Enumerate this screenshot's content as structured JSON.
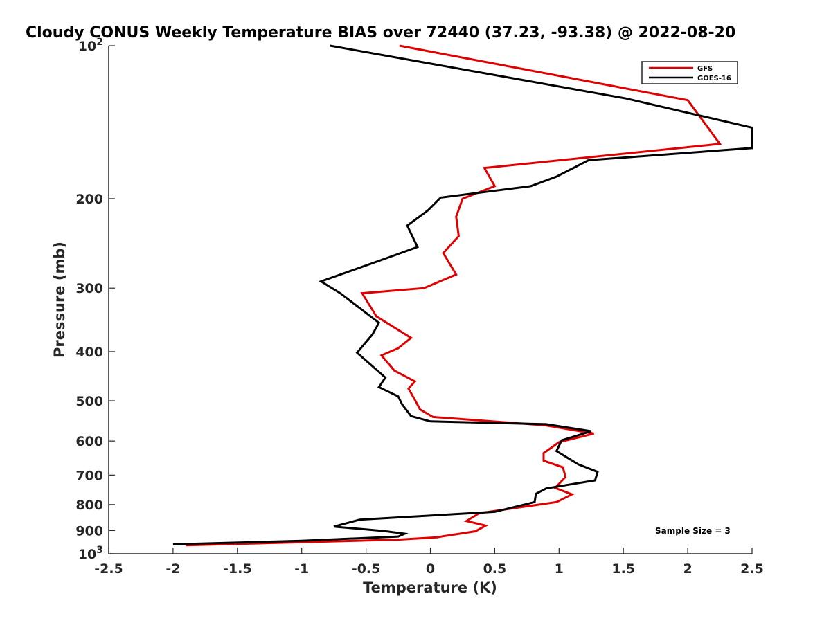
{
  "chart_data": {
    "type": "line",
    "title": "Cloudy CONUS Weekly Temperature BIAS over 72440 (37.23, -93.38) @ 2022-08-20",
    "xlabel": "Temperature (K)",
    "ylabel": "Pressure (mb)",
    "xlim": [
      -2.5,
      2.5
    ],
    "ylim": [
      100,
      1000
    ],
    "y_scale": "log",
    "y_reversed": true,
    "grid": false,
    "legend_position": "top-right",
    "x_ticks": [
      -2.5,
      -2,
      -1.5,
      -1,
      -0.5,
      0,
      0.5,
      1,
      1.5,
      2,
      2.5
    ],
    "x_tick_labels": [
      "-2.5",
      "-2",
      "-1.5",
      "-1",
      "-0.5",
      "0",
      "0.5",
      "1",
      "1.5",
      "2",
      "2.5"
    ],
    "y_ticks": [
      100,
      200,
      300,
      400,
      500,
      600,
      700,
      800,
      900,
      1000
    ],
    "y_tick_labels": [
      "10^2",
      "200",
      "300",
      "400",
      "500",
      "600",
      "700",
      "800",
      "900",
      "10^3"
    ],
    "annotation": "Sample Size = 3",
    "series": [
      {
        "name": "GFS",
        "color": "#e00000",
        "x": [
          -0.24,
          2.0,
          2.25,
          0.42,
          0.5,
          0.25,
          0.2,
          0.22,
          0.1,
          0.2,
          -0.05,
          -0.53,
          -0.42,
          -0.15,
          -0.25,
          -0.38,
          -0.28,
          -0.12,
          -0.17,
          -0.12,
          -0.08,
          0.02,
          0.9,
          1.27,
          1.0,
          0.88,
          0.88,
          1.03,
          1.05,
          0.97,
          1.1,
          0.98,
          0.38,
          0.28,
          0.43,
          0.35,
          0.05,
          -0.25,
          -1.9
        ],
        "y": [
          100,
          128,
          156,
          174,
          189,
          200,
          217,
          237,
          256,
          282,
          300,
          307,
          341,
          376,
          394,
          407,
          436,
          458,
          473,
          498,
          520,
          538,
          559,
          580,
          603,
          634,
          656,
          676,
          706,
          742,
          764,
          791,
          832,
          862,
          880,
          903,
          928,
          938,
          962
        ]
      },
      {
        "name": "GOES-16",
        "color": "#000000",
        "x": [
          -0.78,
          1.52,
          2.5,
          2.5,
          1.23,
          0.98,
          0.78,
          0.08,
          -0.02,
          -0.18,
          -0.1,
          -0.38,
          -0.85,
          -0.7,
          -0.4,
          -0.45,
          -0.57,
          -0.35,
          -0.4,
          -0.25,
          -0.22,
          -0.15,
          0.0,
          0.9,
          1.25,
          1.02,
          0.98,
          1.15,
          1.3,
          1.28,
          1.12,
          0.9,
          0.82,
          0.81,
          0.5,
          -0.55,
          -0.75,
          -0.36,
          -0.2,
          -0.25,
          -1.0,
          -2.0
        ],
        "y": [
          100,
          127,
          145,
          159,
          168,
          181,
          189,
          199,
          211,
          226,
          249,
          264,
          291,
          307,
          351,
          370,
          402,
          450,
          470,
          490,
          508,
          536,
          549,
          556,
          574,
          598,
          628,
          667,
          690,
          717,
          728,
          744,
          762,
          791,
          827,
          857,
          884,
          902,
          913,
          925,
          943,
          958
        ]
      }
    ]
  }
}
